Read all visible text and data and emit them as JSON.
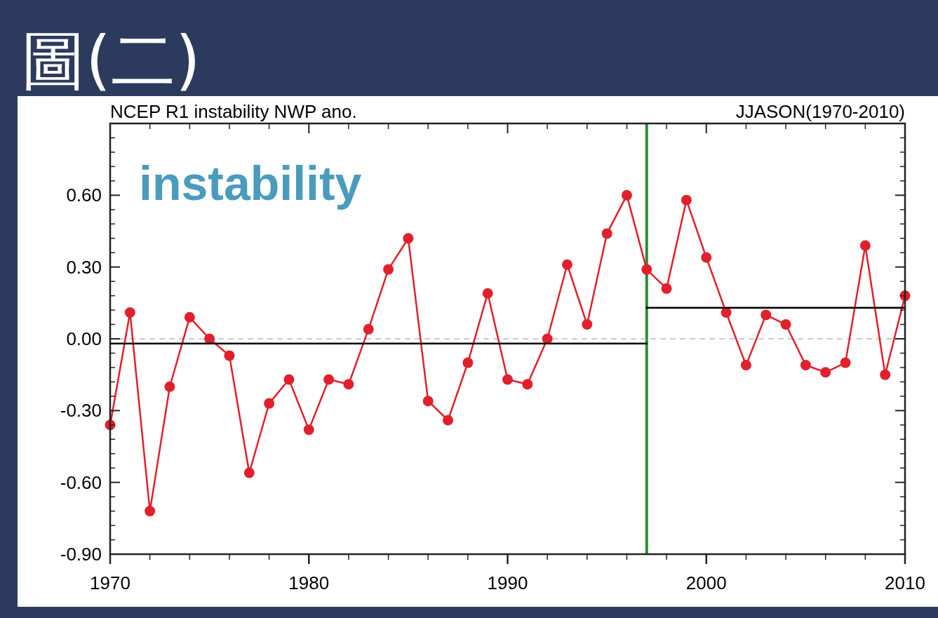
{
  "chart_data": {
    "type": "line",
    "title": "圖(二)",
    "subtitle": "NCEP  R1  instability  NWP  ano.",
    "annotations": [
      "JJASON(1970-2010)",
      "instability"
    ],
    "x": [
      1970,
      1971,
      1972,
      1973,
      1974,
      1975,
      1976,
      1977,
      1978,
      1979,
      1980,
      1981,
      1982,
      1983,
      1984,
      1985,
      1986,
      1987,
      1988,
      1989,
      1990,
      1991,
      1992,
      1993,
      1994,
      1995,
      1996,
      1997,
      1998,
      1999,
      2000,
      2001,
      2002,
      2003,
      2004,
      2005,
      2006,
      2007,
      2008,
      2009,
      2010
    ],
    "series": [
      {
        "color": "#e0202c",
        "marker": "circle",
        "values": [
          -0.36,
          0.11,
          -0.72,
          -0.2,
          0.09,
          0.0,
          -0.07,
          -0.56,
          -0.27,
          -0.17,
          -0.38,
          -0.17,
          -0.19,
          0.04,
          0.29,
          0.42,
          -0.26,
          -0.34,
          -0.1,
          0.19,
          -0.17,
          -0.19,
          0.0,
          0.31,
          0.06,
          0.44,
          0.6,
          0.29,
          0.21,
          0.58,
          0.34,
          0.11,
          -0.11,
          0.1,
          0.06,
          -0.11,
          -0.14,
          -0.1,
          0.39,
          -0.15,
          0.18
        ]
      },
      {
        "type": "line",
        "color": "#000000",
        "marker": "none",
        "x": [
          1970,
          1997
        ],
        "values": [
          -0.02,
          -0.02
        ]
      },
      {
        "type": "line",
        "color": "#000000",
        "marker": "none",
        "x": [
          1997,
          2010
        ],
        "values": [
          0.13,
          0.13
        ]
      }
    ],
    "xlim": [
      1970,
      2010
    ],
    "xticks": [
      1970,
      1980,
      1990,
      2000,
      2010
    ],
    "ylim": [
      -0.9,
      0.9
    ],
    "yticks": [
      {
        "value": -0.9,
        "label": "-0.90"
      },
      {
        "value": -0.6,
        "label": "-0.60"
      },
      {
        "value": -0.3,
        "label": "-0.30"
      },
      {
        "value": 0,
        "label": "0.00"
      },
      {
        "value": 0.3,
        "label": "0.30"
      },
      {
        "value": 0.6,
        "label": "0.60"
      },
      {
        "value": 0.9,
        "label": null
      }
    ],
    "ref_lines": [
      {
        "axis": "x",
        "value": 1997,
        "color": "#2e8b3a"
      },
      {
        "axis": "y",
        "value": 0,
        "color": "#bbbbbb",
        "line_style": "dashed"
      }
    ]
  }
}
